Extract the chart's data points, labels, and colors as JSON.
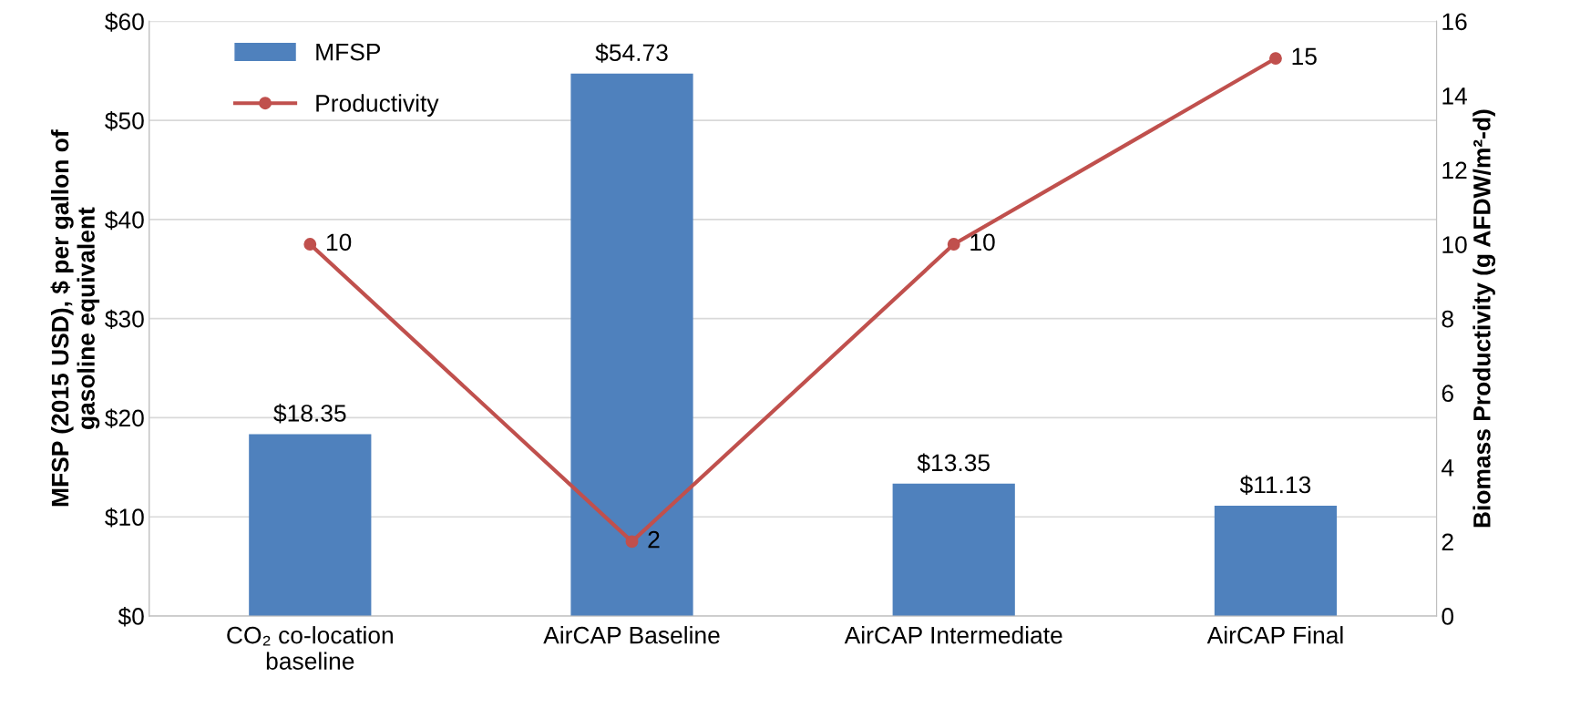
{
  "chart_data": {
    "type": "bar",
    "categories": [
      "CO₂ co-location\nbaseline",
      "AirCAP Baseline",
      "AirCAP Intermediate",
      "AirCAP Final"
    ],
    "series": [
      {
        "name": "MFSP",
        "color": "#4f81bd",
        "values": [
          18.35,
          54.73,
          13.35,
          11.13
        ],
        "value_labels": [
          "$18.35",
          "$54.73",
          "$13.35",
          "$11.13"
        ]
      },
      {
        "name": "Productivity",
        "type": "line",
        "axis": "y2",
        "color": "#c0504d",
        "marker": "circle",
        "values": [
          10,
          2,
          10,
          15
        ],
        "value_labels": [
          "10",
          "2",
          "10",
          "15"
        ]
      }
    ],
    "ylabel": "MFSP (2015 USD), $ per gallon of\ngasoline equivalent",
    "y2label": "Biomass Productivity (g AFDW/m²-d)",
    "ylim": [
      0,
      60
    ],
    "yticks": [
      {
        "value": 0,
        "label": "$0"
      },
      {
        "value": 10,
        "label": "$10"
      },
      {
        "value": 20,
        "label": "$20"
      },
      {
        "value": 30,
        "label": "$30"
      },
      {
        "value": 40,
        "label": "$40"
      },
      {
        "value": 50,
        "label": "$50"
      },
      {
        "value": 60,
        "label": "$60"
      }
    ],
    "y2lim": [
      0,
      16
    ],
    "y2ticks": [
      0,
      2,
      4,
      6,
      8,
      10,
      12,
      14,
      16
    ],
    "grid": "y",
    "legend": "top left"
  }
}
